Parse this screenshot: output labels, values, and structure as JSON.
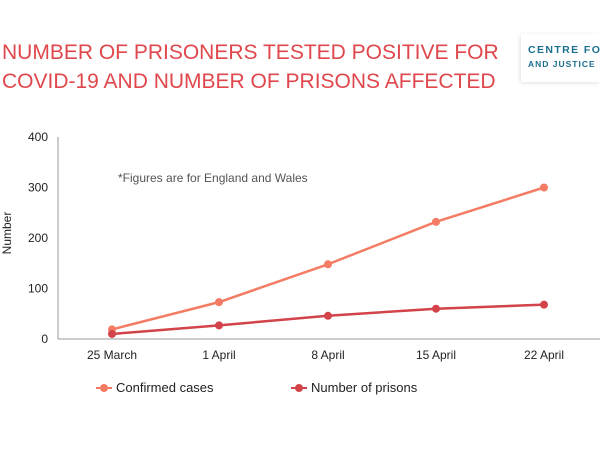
{
  "title_line1": "NUMBER OF PRISONERS TESTED POSITIVE FOR",
  "title_line2": "COVID-19 AND NUMBER OF PRISONS AFFECTED",
  "logo": {
    "line1": "CENTRE FOR",
    "line2": "AND JUSTICE"
  },
  "note": "*Figures are for England and Wales",
  "colors": {
    "title": "#e0474c",
    "confirmed": "#f47c64",
    "prisons": "#d2434a",
    "logo": "#1b6f8f"
  },
  "chart_data": {
    "type": "line",
    "categories": [
      "25 March",
      "1 April",
      "8 April",
      "15 April",
      "22 April"
    ],
    "series": [
      {
        "name": "Confirmed cases",
        "values": [
          19,
          73,
          148,
          232,
          300
        ]
      },
      {
        "name": "Number of prisons",
        "values": [
          10,
          27,
          46,
          60,
          68
        ]
      }
    ],
    "title": "NUMBER OF PRISONERS TESTED POSITIVE FOR COVID-19 AND NUMBER OF PRISONS AFFECTED",
    "xlabel": "",
    "ylabel": "Number",
    "ylim": [
      0,
      400
    ],
    "yticks": [
      0,
      100,
      200,
      300,
      400
    ],
    "grid": false,
    "legend": "bottom"
  }
}
